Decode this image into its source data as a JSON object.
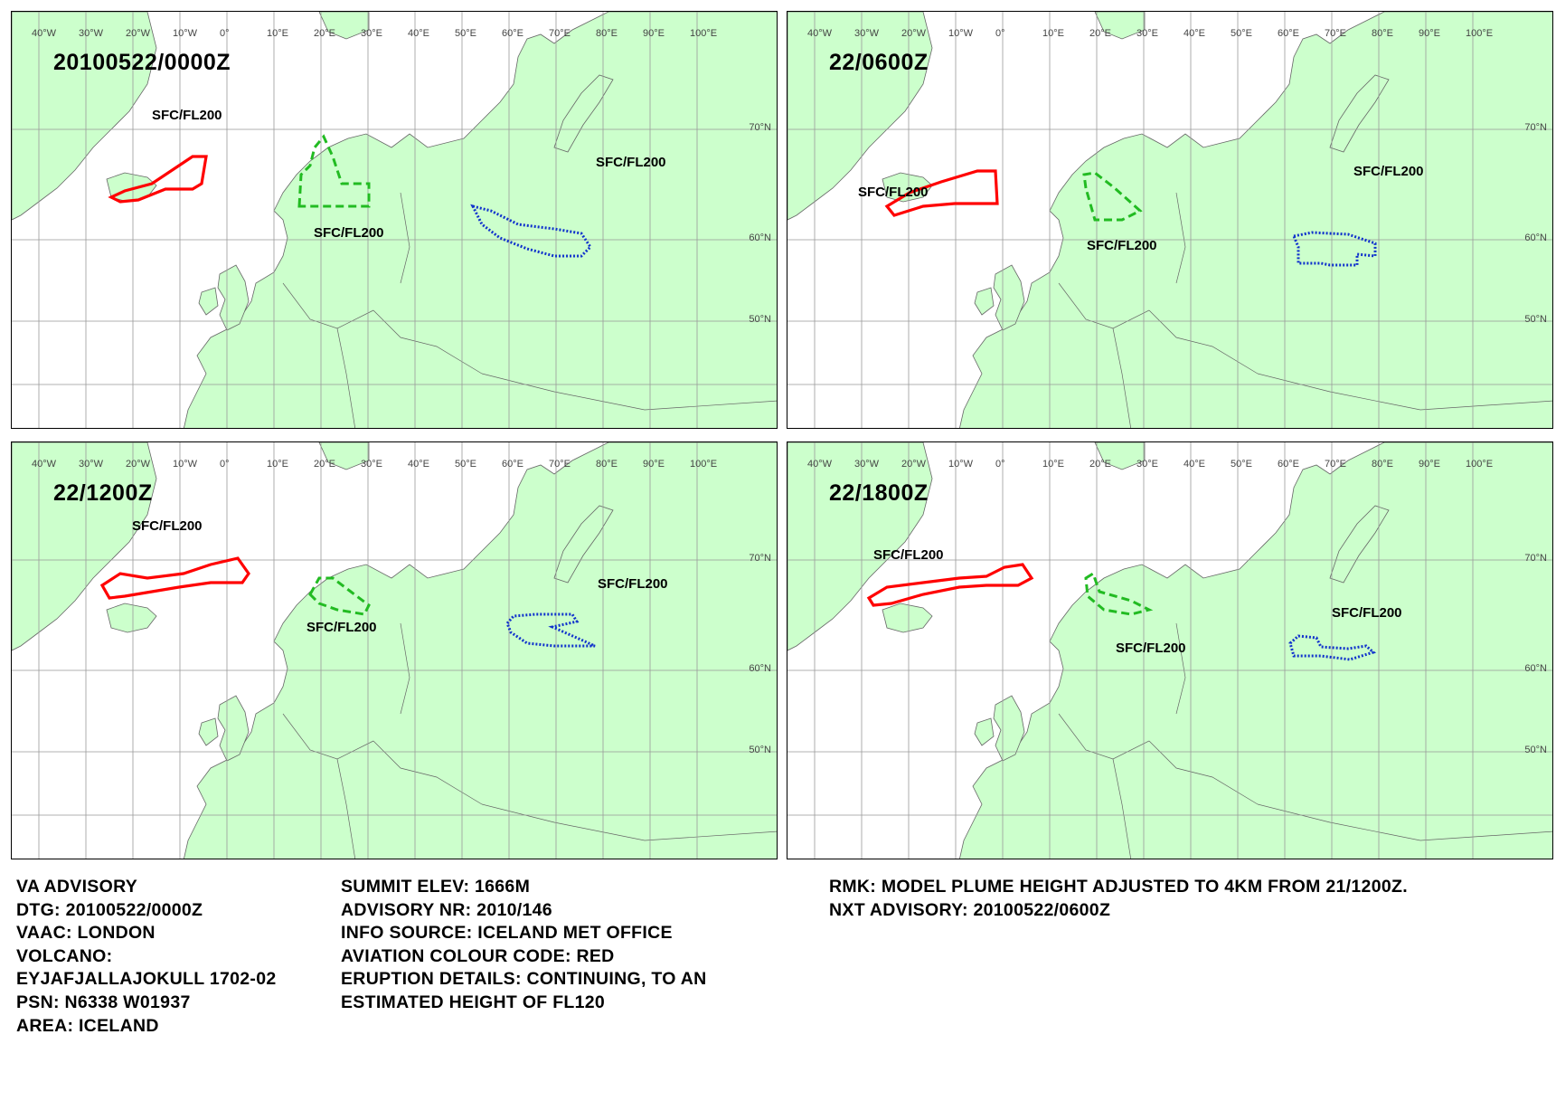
{
  "panels": [
    {
      "title": "20100522/0000Z",
      "labels": [
        {
          "text": "SFC/FL200",
          "left": 155,
          "top": 106
        },
        {
          "text": "SFC/FL200",
          "left": 334,
          "top": 236
        },
        {
          "text": "SFC/FL200",
          "left": 646,
          "top": 158
        }
      ]
    },
    {
      "title": "22/0600Z",
      "labels": [
        {
          "text": "SFC/FL200",
          "left": 78,
          "top": 191
        },
        {
          "text": "SFC/FL200",
          "left": 331,
          "top": 250
        },
        {
          "text": "SFC/FL200",
          "left": 626,
          "top": 168
        }
      ]
    },
    {
      "title": "22/1200Z",
      "labels": [
        {
          "text": "SFC/FL200",
          "left": 133,
          "top": 84
        },
        {
          "text": "SFC/FL200",
          "left": 326,
          "top": 196
        },
        {
          "text": "SFC/FL200",
          "left": 648,
          "top": 148
        }
      ]
    },
    {
      "title": "22/1800Z",
      "labels": [
        {
          "text": "SFC/FL200",
          "left": 95,
          "top": 116
        },
        {
          "text": "SFC/FL200",
          "left": 363,
          "top": 219
        },
        {
          "text": "SFC/FL200",
          "left": 602,
          "top": 180
        }
      ]
    }
  ],
  "grid": {
    "lon_labels": [
      "40°W",
      "30°W",
      "20°W",
      "10°W",
      "0°",
      "10°E",
      "20°E",
      "30°E",
      "40°E",
      "50°E",
      "60°E",
      "70°E",
      "80°E",
      "90°E",
      "100°E"
    ],
    "lat_labels": [
      "70°N",
      "60°N",
      "50°N"
    ]
  },
  "advisory": {
    "col1": [
      "VA ADVISORY",
      "DTG:  20100522/0000Z",
      "VAAC:  LONDON",
      "VOLCANO:",
      "EYJAFJALLAJOKULL 1702-02",
      "PSN:  N6338 W01937",
      "AREA:  ICELAND"
    ],
    "col2": [
      "SUMMIT ELEV:  1666M",
      "ADVISORY NR:  2010/146",
      "INFO SOURCE:  ICELAND MET OFFICE",
      "AVIATION COLOUR CODE:  RED",
      "ERUPTION DETAILS:  CONTINUING, TO AN",
      "ESTIMATED HEIGHT OF FL120"
    ],
    "col3": [
      "RMK:  MODEL PLUME HEIGHT ADJUSTED TO 4KM FROM 21/1200Z.",
      "NXT ADVISORY:  20100522/0600Z"
    ]
  },
  "colors": {
    "land": "#ccffcc",
    "sea": "#ffffff",
    "border": "#666666",
    "plume_low": "#ff0000",
    "plume_mid": "#22bb22",
    "plume_high": "#1133cc"
  }
}
